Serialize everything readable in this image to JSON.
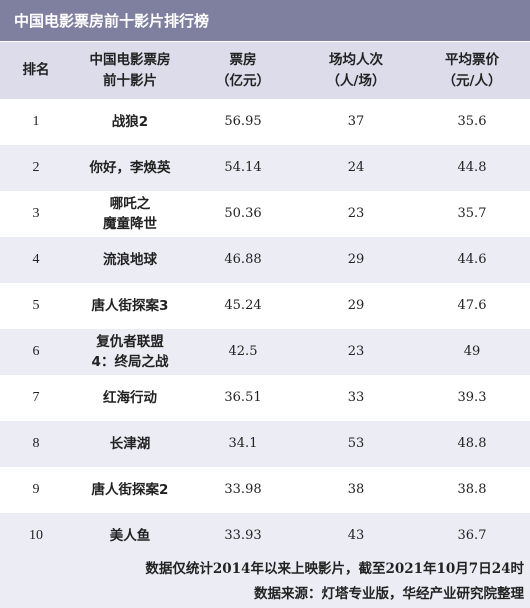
{
  "title": "中国电影票房前十影片排行榜",
  "headers": {
    "rank": "排名",
    "film": "中国电影票房\n前十影片",
    "box_office": "票房\n（亿元）",
    "avg_audience": "场均人次\n（人/场）",
    "avg_price": "平均票价\n（元/人）"
  },
  "rows": [
    {
      "rank": "1",
      "film": "战狼2",
      "box_office": "56.95",
      "avg_audience": "37",
      "avg_price": "35.6"
    },
    {
      "rank": "2",
      "film": "你好，李焕英",
      "box_office": "54.14",
      "avg_audience": "24",
      "avg_price": "44.8"
    },
    {
      "rank": "3",
      "film": "哪吒之\n魔童降世",
      "box_office": "50.36",
      "avg_audience": "23",
      "avg_price": "35.7"
    },
    {
      "rank": "4",
      "film": "流浪地球",
      "box_office": "46.88",
      "avg_audience": "29",
      "avg_price": "44.6"
    },
    {
      "rank": "5",
      "film": "唐人街探案3",
      "box_office": "45.24",
      "avg_audience": "29",
      "avg_price": "47.6"
    },
    {
      "rank": "6",
      "film": "复仇者联盟\n4：终局之战",
      "box_office": "42.5",
      "avg_audience": "23",
      "avg_price": "49"
    },
    {
      "rank": "7",
      "film": "红海行动",
      "box_office": "36.51",
      "avg_audience": "33",
      "avg_price": "39.3"
    },
    {
      "rank": "8",
      "film": "长津湖",
      "box_office": "34.1",
      "avg_audience": "53",
      "avg_price": "48.8"
    },
    {
      "rank": "9",
      "film": "唐人街探案2",
      "box_office": "33.98",
      "avg_audience": "38",
      "avg_price": "38.8"
    },
    {
      "rank": "10",
      "film": "美人鱼",
      "box_office": "33.93",
      "avg_audience": "43",
      "avg_price": "36.7"
    }
  ],
  "footer": {
    "note": "数据仅统计2014年以来上映影片，截至2021年10月7日24时",
    "source": "数据来源：灯塔专业版，华经产业研究院整理"
  },
  "colors": {
    "title_bg": "#7f7f9f",
    "header_bg": "#dcdceb",
    "stripe_bg": "#ececf4"
  }
}
